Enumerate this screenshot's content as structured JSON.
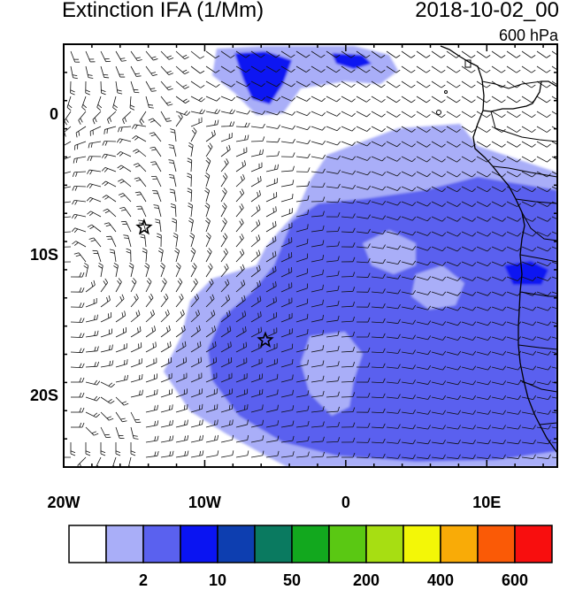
{
  "title": "Extinction IFA (1/Mm)",
  "date": "2018-10-02_00",
  "level": "600 hPa",
  "axes": {
    "lon_ticks": [
      {
        "value": -20,
        "label": "20W"
      },
      {
        "value": -10,
        "label": "10W"
      },
      {
        "value": 0,
        "label": "0"
      },
      {
        "value": 10,
        "label": "10E"
      }
    ],
    "lat_ticks": [
      {
        "value": 0,
        "label": "0"
      },
      {
        "value": -10,
        "label": "10S"
      },
      {
        "value": -20,
        "label": "20S"
      }
    ],
    "lon_range": [
      -20,
      15
    ],
    "lat_range": [
      -25,
      5
    ]
  },
  "colorbar": {
    "colors": [
      "#ffffff",
      "#a9aef8",
      "#5a61ef",
      "#0a14f2",
      "#0d3eb0",
      "#0a7a60",
      "#12a81e",
      "#5ac813",
      "#a7de12",
      "#f3f707",
      "#f9ab07",
      "#fa5a06",
      "#f80e0e"
    ],
    "labels": [
      {
        "after_box": 1,
        "text": "2"
      },
      {
        "after_box": 3,
        "text": "10"
      },
      {
        "after_box": 5,
        "text": "50"
      },
      {
        "after_box": 7,
        "text": "200"
      },
      {
        "after_box": 9,
        "text": "400"
      },
      {
        "after_box": 11,
        "text": "600"
      }
    ]
  },
  "markers": [
    {
      "type": "star",
      "lon": -14.3,
      "lat": -8.0
    },
    {
      "type": "star",
      "lon": -5.7,
      "lat": -16.0
    }
  ]
}
